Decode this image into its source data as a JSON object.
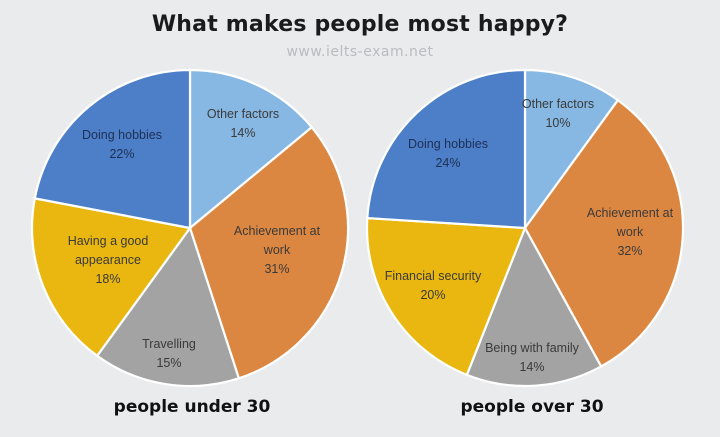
{
  "title": "What makes people most happy?",
  "watermark": "www.ielts-exam.net",
  "chart_data": [
    {
      "type": "pie",
      "title": "people under 30",
      "slices": [
        {
          "label": "Other factors",
          "value": 14,
          "display": "14%",
          "color": "#86b8e3"
        },
        {
          "label": "Achievement at work",
          "value": 31,
          "display": "31%",
          "color": "#dc8741"
        },
        {
          "label": "Travelling",
          "value": 15,
          "display": "15%",
          "color": "#a3a3a3"
        },
        {
          "label": "Having a good appearance",
          "value": 18,
          "display": "18%",
          "color": "#e9b710"
        },
        {
          "label": "Doing hobbies",
          "value": 22,
          "display": "22%",
          "color": "#4c7fc7"
        }
      ]
    },
    {
      "type": "pie",
      "title": "people over 30",
      "slices": [
        {
          "label": "Other factors",
          "value": 10,
          "display": "10%",
          "color": "#86b8e3"
        },
        {
          "label": "Achievement at work",
          "value": 32,
          "display": "32%",
          "color": "#dc8741"
        },
        {
          "label": "Being with family",
          "value": 14,
          "display": "14%",
          "color": "#a3a3a3"
        },
        {
          "label": "Financial security",
          "value": 20,
          "display": "20%",
          "color": "#e9b710"
        },
        {
          "label": "Doing hobbies",
          "value": 24,
          "display": "24%",
          "color": "#4c7fc7"
        }
      ]
    }
  ]
}
